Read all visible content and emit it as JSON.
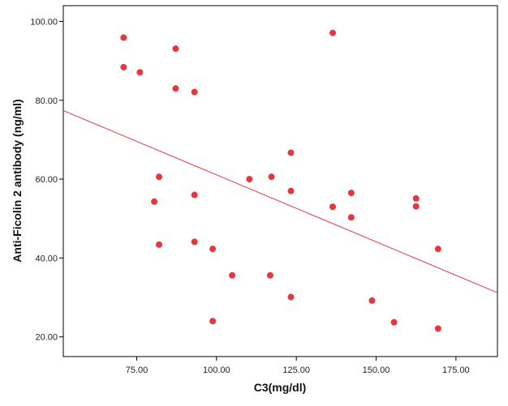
{
  "chart_data": {
    "type": "scatter",
    "xlabel": "C3(mg/dl)",
    "ylabel": "Anti-Ficolin 2 antibody (ng/ml)",
    "xlim": [
      52,
      188
    ],
    "ylim": [
      15,
      104
    ],
    "x_ticks": [
      75,
      100,
      125,
      150,
      175
    ],
    "x_tick_labels": [
      "75.00",
      "100.00",
      "125.00",
      "150.00",
      "175.00"
    ],
    "y_ticks": [
      20,
      40,
      60,
      80,
      100
    ],
    "y_tick_labels": [
      "20.00",
      "40.00",
      "60.00",
      "80.00",
      "100.00"
    ],
    "grid": false,
    "point_color": "#e8363e",
    "line_color": "#e8363e",
    "points": [
      {
        "x": 70.9,
        "y": 95.9
      },
      {
        "x": 70.9,
        "y": 88.4
      },
      {
        "x": 76.0,
        "y": 87.1
      },
      {
        "x": 87.2,
        "y": 93.1
      },
      {
        "x": 87.2,
        "y": 83.0
      },
      {
        "x": 93.1,
        "y": 82.1
      },
      {
        "x": 136.4,
        "y": 97.1
      },
      {
        "x": 82.0,
        "y": 60.6
      },
      {
        "x": 80.5,
        "y": 54.3
      },
      {
        "x": 93.1,
        "y": 56.0
      },
      {
        "x": 82.0,
        "y": 43.4
      },
      {
        "x": 93.1,
        "y": 44.1
      },
      {
        "x": 98.8,
        "y": 42.3
      },
      {
        "x": 98.8,
        "y": 24.0
      },
      {
        "x": 104.9,
        "y": 35.6
      },
      {
        "x": 110.3,
        "y": 60.0
      },
      {
        "x": 117.2,
        "y": 60.6
      },
      {
        "x": 116.8,
        "y": 35.6
      },
      {
        "x": 123.3,
        "y": 66.7
      },
      {
        "x": 123.3,
        "y": 57.0
      },
      {
        "x": 123.3,
        "y": 30.1
      },
      {
        "x": 136.4,
        "y": 53.0
      },
      {
        "x": 142.2,
        "y": 56.5
      },
      {
        "x": 142.2,
        "y": 50.3
      },
      {
        "x": 148.7,
        "y": 29.2
      },
      {
        "x": 155.6,
        "y": 23.7
      },
      {
        "x": 162.5,
        "y": 55.1
      },
      {
        "x": 162.5,
        "y": 53.1
      },
      {
        "x": 169.4,
        "y": 42.3
      },
      {
        "x": 169.4,
        "y": 22.1
      }
    ],
    "fit_line": {
      "x": [
        52,
        188
      ],
      "y": [
        77.4,
        31.2
      ]
    }
  }
}
